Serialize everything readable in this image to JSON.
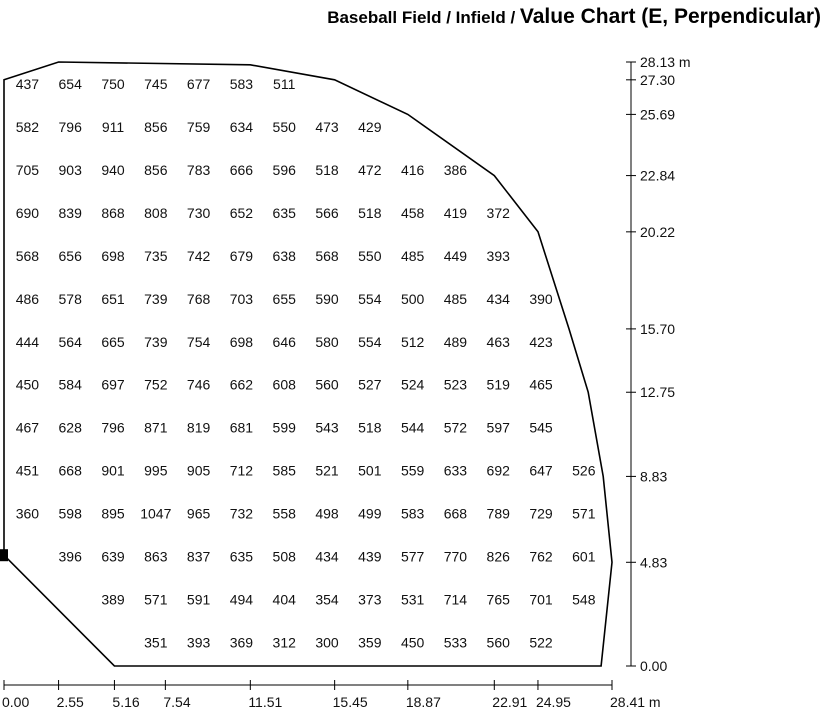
{
  "title": {
    "part1": "Baseball Field / Infield / ",
    "part2": "Value Chart (E, Perpendicular)"
  },
  "chart_data": {
    "type": "value_grid",
    "x_axis": {
      "ticks": [
        0.0,
        2.55,
        5.16,
        7.54,
        11.51,
        15.45,
        18.87,
        22.91,
        24.95,
        28.41
      ],
      "labels": [
        "0.00",
        "2.55",
        "5.16",
        "7.54",
        "11.51",
        "15.45",
        "18.87",
        "22.91",
        "24.95",
        "28.41 m"
      ],
      "max": 28.41
    },
    "y_axis": {
      "ticks": [
        0.0,
        4.83,
        8.83,
        12.75,
        15.7,
        20.22,
        22.84,
        25.69,
        27.3,
        28.13
      ],
      "labels": [
        "0.00",
        "4.83",
        "8.83",
        "12.75",
        "15.70",
        "20.22",
        "22.84",
        "25.69",
        "27.30",
        "28.13 m"
      ],
      "max": 28.13
    },
    "boundary": [
      [
        0.0,
        27.3
      ],
      [
        2.55,
        28.13
      ],
      [
        11.51,
        28.0
      ],
      [
        15.45,
        27.3
      ],
      [
        18.87,
        25.69
      ],
      [
        22.91,
        22.84
      ],
      [
        24.95,
        20.22
      ],
      [
        26.4,
        15.7
      ],
      [
        27.3,
        12.75
      ],
      [
        28.0,
        8.83
      ],
      [
        28.41,
        4.83
      ],
      [
        27.9,
        0.0
      ],
      [
        5.16,
        0.0
      ],
      [
        0.0,
        5.16
      ]
    ],
    "rows": [
      {
        "y": 27.1,
        "values": [
          437,
          654,
          750,
          745,
          677,
          583,
          511,
          null,
          null,
          null,
          null,
          null,
          null,
          null
        ]
      },
      {
        "y": 25.1,
        "values": [
          582,
          796,
          911,
          856,
          759,
          634,
          550,
          473,
          429,
          null,
          null,
          null,
          null,
          null
        ]
      },
      {
        "y": 23.1,
        "values": [
          705,
          903,
          940,
          856,
          783,
          666,
          596,
          518,
          472,
          416,
          386,
          null,
          null,
          null
        ]
      },
      {
        "y": 21.1,
        "values": [
          690,
          839,
          868,
          808,
          730,
          652,
          635,
          566,
          518,
          458,
          419,
          372,
          null,
          null
        ]
      },
      {
        "y": 19.1,
        "values": [
          568,
          656,
          698,
          735,
          742,
          679,
          638,
          568,
          550,
          485,
          449,
          393,
          null,
          null
        ]
      },
      {
        "y": 17.1,
        "values": [
          486,
          578,
          651,
          739,
          768,
          703,
          655,
          590,
          554,
          500,
          485,
          434,
          390,
          null
        ]
      },
      {
        "y": 15.1,
        "values": [
          444,
          564,
          665,
          739,
          754,
          698,
          646,
          580,
          554,
          512,
          489,
          463,
          423,
          null
        ]
      },
      {
        "y": 13.1,
        "values": [
          450,
          584,
          697,
          752,
          746,
          662,
          608,
          560,
          527,
          524,
          523,
          519,
          465,
          null
        ]
      },
      {
        "y": 11.1,
        "values": [
          467,
          628,
          796,
          871,
          819,
          681,
          599,
          543,
          518,
          544,
          572,
          597,
          545,
          null
        ]
      },
      {
        "y": 9.1,
        "values": [
          451,
          668,
          901,
          995,
          905,
          712,
          585,
          521,
          501,
          559,
          633,
          692,
          647,
          526
        ]
      },
      {
        "y": 7.1,
        "values": [
          360,
          598,
          895,
          1047,
          965,
          732,
          558,
          498,
          499,
          583,
          668,
          789,
          729,
          571
        ]
      },
      {
        "y": 5.1,
        "values": [
          null,
          396,
          639,
          863,
          837,
          635,
          508,
          434,
          439,
          577,
          770,
          826,
          762,
          601
        ]
      },
      {
        "y": 3.1,
        "values": [
          null,
          null,
          389,
          571,
          591,
          494,
          404,
          354,
          373,
          531,
          714,
          765,
          701,
          548
        ]
      },
      {
        "y": 1.1,
        "values": [
          null,
          null,
          null,
          351,
          393,
          369,
          312,
          300,
          359,
          450,
          533,
          560,
          522,
          null
        ]
      }
    ],
    "column_x": [
      1.0,
      3.0,
      5.0,
      7.0,
      9.0,
      11.0,
      13.0,
      15.0,
      17.0,
      19.0,
      21.0,
      23.0,
      25.0,
      27.0
    ]
  },
  "colors": {
    "line": "#000000",
    "text": "#111111"
  }
}
